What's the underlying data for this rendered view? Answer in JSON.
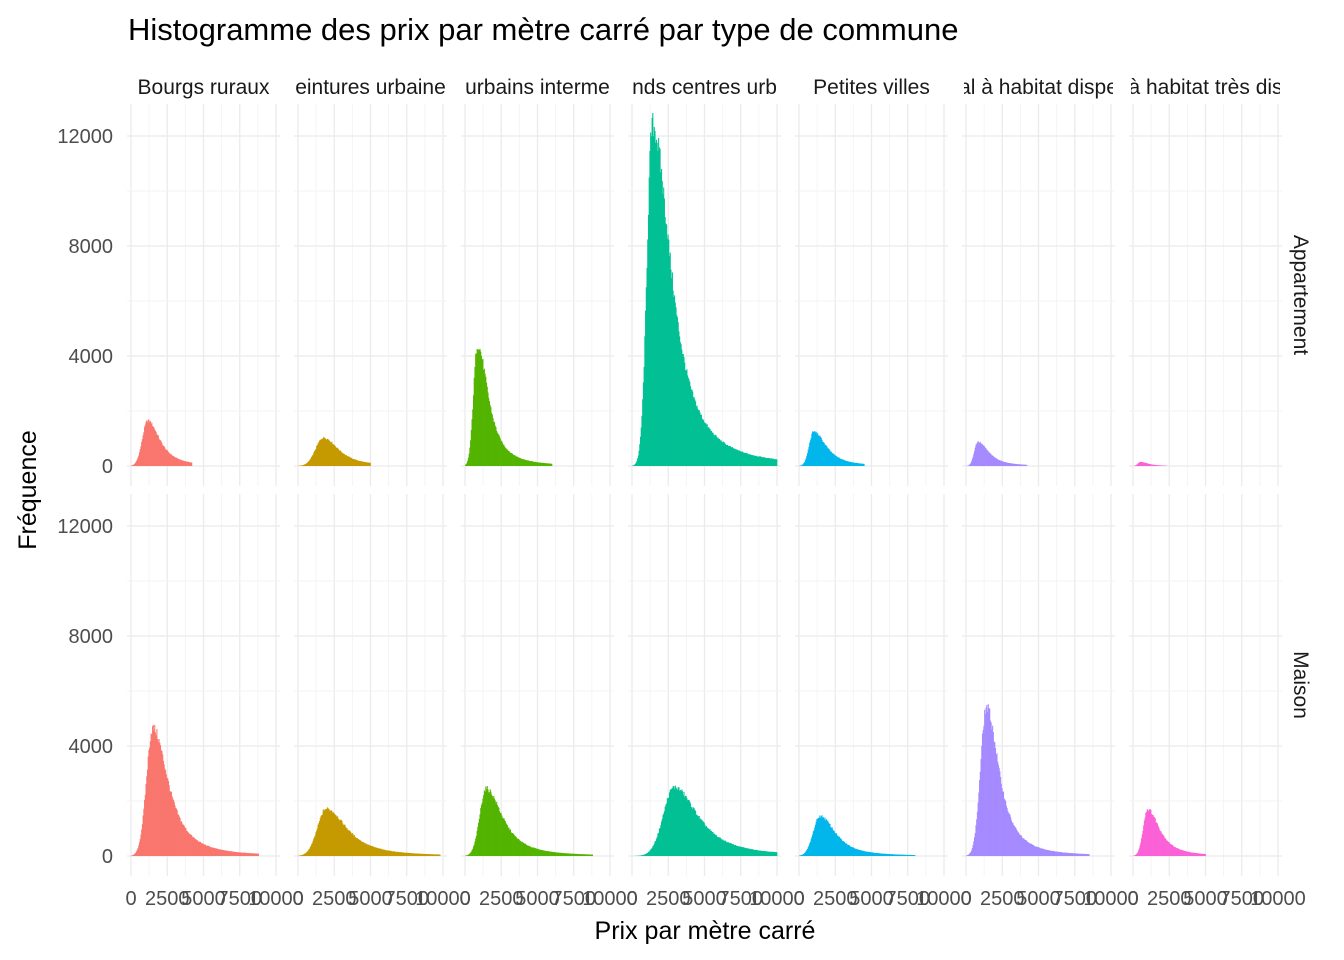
{
  "chart_data": {
    "type": "bar",
    "title": "Histogramme des prix par mètre carré par type de commune",
    "xlabel": "Prix par mètre carré",
    "ylabel": "Fréquence",
    "ylim": [
      0,
      12500
    ],
    "xlim": [
      0,
      10000
    ],
    "y_ticks": [
      0,
      4000,
      8000,
      12000
    ],
    "y_tick_labels": [
      "0",
      "4000",
      "8000",
      "12000"
    ],
    "x_ticks": [
      0,
      2500,
      5000,
      7500,
      10000
    ],
    "x_tick_labels": [
      "0",
      "2500",
      "5000",
      "7500",
      "10000"
    ],
    "grid": true,
    "legend": "none",
    "facet_columns": [
      {
        "name": "Bourgs ruraux",
        "strip_label": "Bourgs ruraux",
        "color": "#F8766D"
      },
      {
        "name": "Ceintures urbaines",
        "strip_label": "eintures urbaine",
        "color": "#C49A00"
      },
      {
        "name": "Centres urbains intermédiaires",
        "strip_label": "urbains interme",
        "color": "#53B400"
      },
      {
        "name": "Grands centres urbains",
        "strip_label": "nds centres urb",
        "color": "#00C094"
      },
      {
        "name": "Petites villes",
        "strip_label": "Petites villes",
        "color": "#00B6EB"
      },
      {
        "name": "Rural à habitat dispersé",
        "strip_label": "al à habitat dispe",
        "color": "#A58AFF"
      },
      {
        "name": "Rural à habitat très dispersé",
        "strip_label": "à habitat très dis",
        "color": "#FB61D7"
      }
    ],
    "facet_rows": [
      "Appartement",
      "Maison"
    ],
    "series": [
      {
        "row": "Appartement",
        "col": "Bourgs ruraux",
        "peak_x": 1150,
        "peak_y": 1650,
        "spread_left": 550,
        "spread_right": 1100,
        "tail_end": 4200
      },
      {
        "row": "Appartement",
        "col": "Ceintures urbaines",
        "peak_x": 1750,
        "peak_y": 1030,
        "spread_left": 800,
        "spread_right": 1400,
        "tail_end": 5000
      },
      {
        "row": "Appartement",
        "col": "Centres urbains intermédiaires",
        "peak_x": 850,
        "peak_y": 4400,
        "spread_left": 400,
        "spread_right": 1000,
        "tail_end": 6000
      },
      {
        "row": "Appartement",
        "col": "Grands centres urbains",
        "peak_x": 1400,
        "peak_y": 12400,
        "spread_left": 550,
        "spread_right": 1700,
        "tail_end": 10000
      },
      {
        "row": "Appartement",
        "col": "Petites villes",
        "peak_x": 1000,
        "peak_y": 1250,
        "spread_left": 450,
        "spread_right": 1150,
        "tail_end": 4500
      },
      {
        "row": "Appartement",
        "col": "Rural à habitat dispersé",
        "peak_x": 800,
        "peak_y": 880,
        "spread_left": 350,
        "spread_right": 1000,
        "tail_end": 4200
      },
      {
        "row": "Appartement",
        "col": "Rural à habitat très dispersé",
        "peak_x": 500,
        "peak_y": 150,
        "spread_left": 250,
        "spread_right": 700,
        "tail_end": 2300
      },
      {
        "row": "Maison",
        "col": "Bourgs ruraux",
        "peak_x": 1500,
        "peak_y": 4650,
        "spread_left": 650,
        "spread_right": 1400,
        "tail_end": 8800
      },
      {
        "row": "Maison",
        "col": "Ceintures urbaines",
        "peak_x": 1950,
        "peak_y": 1720,
        "spread_left": 900,
        "spread_right": 1900,
        "tail_end": 9800
      },
      {
        "row": "Maison",
        "col": "Centres urbains intermédiaires",
        "peak_x": 1450,
        "peak_y": 2450,
        "spread_left": 650,
        "spread_right": 1500,
        "tail_end": 8800
      },
      {
        "row": "Maison",
        "col": "Grands centres urbains",
        "peak_x": 2900,
        "peak_y": 2500,
        "spread_left": 1100,
        "spread_right": 2200,
        "tail_end": 10000
      },
      {
        "row": "Maison",
        "col": "Petites villes",
        "peak_x": 1450,
        "peak_y": 1450,
        "spread_left": 700,
        "spread_right": 1400,
        "tail_end": 8000
      },
      {
        "row": "Maison",
        "col": "Rural à habitat dispersé",
        "peak_x": 1400,
        "peak_y": 5400,
        "spread_left": 600,
        "spread_right": 1150,
        "tail_end": 8500
      },
      {
        "row": "Maison",
        "col": "Rural à habitat très dispersé",
        "peak_x": 1000,
        "peak_y": 1700,
        "spread_left": 450,
        "spread_right": 1100,
        "tail_end": 5000
      }
    ]
  }
}
